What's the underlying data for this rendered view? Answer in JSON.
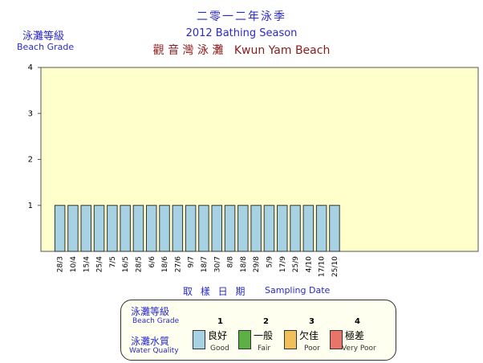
{
  "header": {
    "title_zh": "二零一二年泳季",
    "title_en": "2012 Bathing Season",
    "beach_zh": "觀 音 灣 泳 灘",
    "beach_en": "Kwun Yam Beach"
  },
  "axis_labels": {
    "y_zh": "泳灘等級",
    "y_en": "Beach Grade",
    "x_zh": "取 樣 日 期",
    "x_en": "Sampling Date"
  },
  "legend": {
    "grade_zh": "泳灘等級",
    "grade_en": "Beach Grade",
    "quality_zh": "泳灘水質",
    "quality_en": "Water Quality",
    "items": [
      {
        "num": "1",
        "zh": "良好",
        "en": "Good",
        "color": "#a6d2e4"
      },
      {
        "num": "2",
        "zh": "一般",
        "en": "Fair",
        "color": "#5cb046"
      },
      {
        "num": "3",
        "zh": "欠佳",
        "en": "Poor",
        "color": "#f2c05a"
      },
      {
        "num": "4",
        "zh": "極差",
        "en": "Very Poor",
        "color": "#e8756a"
      }
    ]
  },
  "colors": {
    "plot_bg": "#ffffcc",
    "bar_fill": "#a6d2e4",
    "title_blue": "#2a2ac8",
    "beach_red": "#8b1a1a"
  },
  "chart_data": {
    "type": "bar",
    "categories": [
      "28/3",
      "10/4",
      "15/4",
      "25/4",
      "7/5",
      "16/5",
      "28/5",
      "6/6",
      "18/6",
      "27/6",
      "9/7",
      "18/7",
      "30/7",
      "8/8",
      "18/8",
      "29/8",
      "5/9",
      "17/9",
      "25/9",
      "4/10",
      "17/10",
      "25/10"
    ],
    "values": [
      1,
      1,
      1,
      1,
      1,
      1,
      1,
      1,
      1,
      1,
      1,
      1,
      1,
      1,
      1,
      1,
      1,
      1,
      1,
      1,
      1,
      1
    ],
    "yticks": [
      1,
      2,
      3,
      4
    ],
    "ylim": [
      0,
      4
    ],
    "total_slots": 33,
    "grid": false
  }
}
